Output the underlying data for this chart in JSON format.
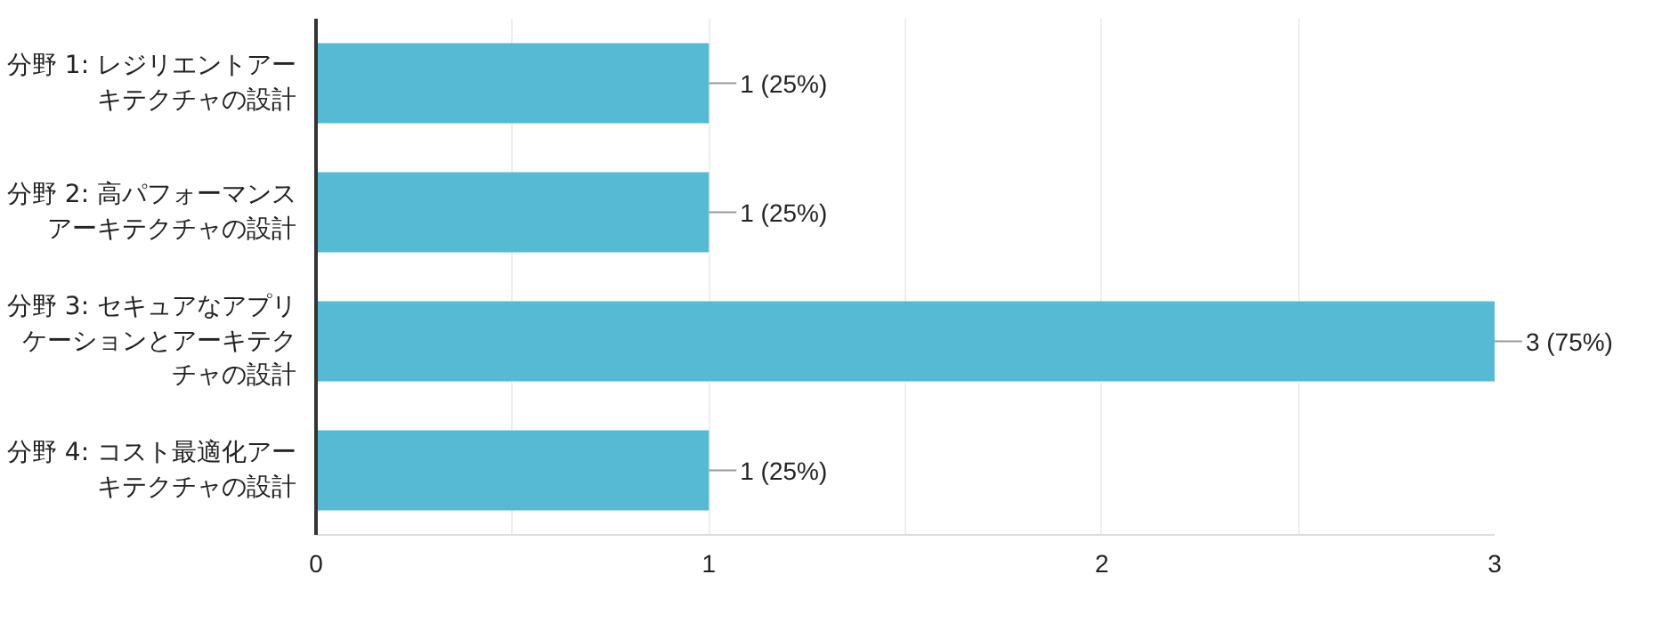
{
  "chart_data": {
    "type": "bar",
    "orientation": "horizontal",
    "categories": [
      "分野 1: レジリエントアーキテクチャの設計",
      "分野 2: 高パフォーマンスアーキテクチャの設計",
      "分野 3: セキュアなアプリケーションとアーキテクチャの設計",
      "分野 4: コスト最適化アーキテクチャの設計"
    ],
    "values": [
      1,
      1,
      3,
      1
    ],
    "value_labels": [
      "1 (25%)",
      "1 (25%)",
      "3 (75%)",
      "1 (25%)"
    ],
    "color": "#57bad4",
    "xlim": [
      0,
      3
    ],
    "xticks": [
      0,
      {
        "value": 0.5,
        "label": null
      },
      1,
      {
        "value": 1.5,
        "label": null
      },
      2,
      {
        "value": 2.5,
        "label": null
      },
      3
    ],
    "grid": "x"
  }
}
